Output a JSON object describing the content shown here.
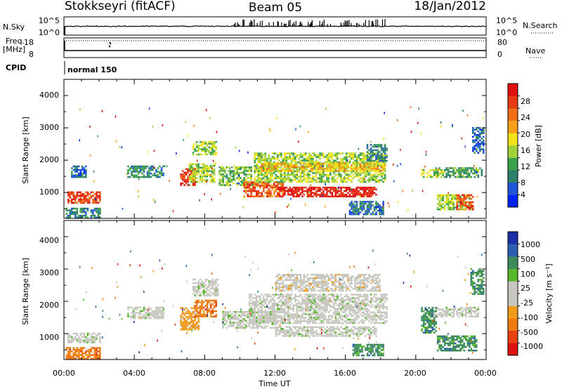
{
  "header": {
    "title": "Stokkseyri (fitACF)",
    "beam": "Beam 05",
    "date": "18/Jan/2012"
  },
  "top_panels": {
    "nsky_label": "N.Sky",
    "nsky_ticks": [
      "10^5",
      "10^0"
    ],
    "nsearch_label": "N.Search",
    "nsearch_ticks": [
      "10^5",
      "10^0"
    ],
    "freq_label": "Freq.",
    "freq_unit": "[MHz]",
    "freq_ticks": [
      "18",
      "8"
    ],
    "nave_label": "Nave",
    "nave_ticks": [
      "80",
      "0"
    ],
    "cpid_label": "CPID",
    "cpid_value": "normal 150"
  },
  "colors": {
    "power": [
      "#0022ee",
      "#1f55d8",
      "#2d7f6a",
      "#3aa04a",
      "#9fd23a",
      "#f2e21a",
      "#f5a01a",
      "#f07018",
      "#e83a14",
      "#e01010"
    ],
    "velocity": [
      "#1a2ea8",
      "#2b5fb0",
      "#3a8a5a",
      "#56b82a",
      "#c8c8c0",
      "#c8c8c0",
      "#f29a1a",
      "#f07a10",
      "#e84010",
      "#dd1010"
    ]
  },
  "chart_data": [
    {
      "type": "heatmap",
      "name": "power",
      "x_axis": "time_ut",
      "xlim": [
        0,
        24
      ],
      "ylim": [
        200,
        4500
      ],
      "ylabel": "Slant Range [km]",
      "yticks": [
        "1000",
        "2000",
        "3000",
        "4000"
      ],
      "colorbar": {
        "label": "Power [dB]",
        "ticks": [
          "4",
          "8",
          "12",
          "16",
          "20",
          "24",
          "28"
        ],
        "range": [
          0,
          30
        ]
      },
      "regions": [
        {
          "t": [
            0.2,
            2.1
          ],
          "r": [
            650,
            1000
          ],
          "v": 25
        },
        {
          "t": [
            0.1,
            2.1
          ],
          "r": [
            200,
            500
          ],
          "v": 8
        },
        {
          "t": [
            0.4,
            1.3
          ],
          "r": [
            1450,
            1800
          ],
          "v": 6
        },
        {
          "t": [
            3.6,
            5.6
          ],
          "r": [
            1450,
            1800
          ],
          "v": 8
        },
        {
          "t": [
            6.6,
            7.4
          ],
          "r": [
            1200,
            1700
          ],
          "v": 26
        },
        {
          "t": [
            7.1,
            8.5
          ],
          "r": [
            1300,
            1900
          ],
          "v": 14
        },
        {
          "t": [
            7.3,
            8.6
          ],
          "r": [
            2150,
            2550
          ],
          "v": 14
        },
        {
          "t": [
            8.8,
            10.6
          ],
          "r": [
            1200,
            1800
          ],
          "v": 12
        },
        {
          "t": [
            10.2,
            12.4
          ],
          "r": [
            850,
            1300
          ],
          "v": 24
        },
        {
          "t": [
            12.2,
            17.8
          ],
          "r": [
            850,
            1150
          ],
          "v": 28
        },
        {
          "t": [
            10.8,
            18.3
          ],
          "r": [
            1300,
            2200
          ],
          "v": 14
        },
        {
          "t": [
            11.2,
            18.3
          ],
          "r": [
            1650,
            1900
          ],
          "v": 18
        },
        {
          "t": [
            17.2,
            18.4
          ],
          "r": [
            1950,
            2500
          ],
          "v": 8
        },
        {
          "t": [
            16.2,
            18.2
          ],
          "r": [
            300,
            700
          ],
          "v": 6
        },
        {
          "t": [
            20.3,
            21.6
          ],
          "r": [
            1450,
            1750
          ],
          "v": 14
        },
        {
          "t": [
            21.6,
            23.8
          ],
          "r": [
            1450,
            1750
          ],
          "v": 10
        },
        {
          "t": [
            21.2,
            23.2
          ],
          "r": [
            450,
            900
          ],
          "v": 14
        },
        {
          "t": [
            22.3,
            23.3
          ],
          "r": [
            450,
            900
          ],
          "v": 24
        },
        {
          "t": [
            23.2,
            23.9
          ],
          "r": [
            2200,
            3000
          ],
          "v": 6
        }
      ]
    },
    {
      "type": "heatmap",
      "name": "velocity",
      "x_axis": "time_ut",
      "xlim": [
        0,
        24
      ],
      "ylim": [
        200,
        4500
      ],
      "ylabel": "Slant Range [km]",
      "yticks": [
        "1000",
        "2000",
        "3000",
        "4000"
      ],
      "xticks": [
        "00:00",
        "04:00",
        "08:00",
        "12:00",
        "16:00",
        "20:00",
        "00:00"
      ],
      "xlabel": "Time UT",
      "colorbar": {
        "label": "Velocity [m s⁻¹]",
        "ticks": [
          "1000",
          "500",
          "100",
          "25",
          "-25",
          "-100",
          "-500",
          "-1000"
        ]
      },
      "regions": [
        {
          "t": [
            0.1,
            2.1
          ],
          "r": [
            200,
            550
          ],
          "v": 2
        },
        {
          "t": [
            0.2,
            2.1
          ],
          "r": [
            700,
            1000
          ],
          "v": 5
        },
        {
          "t": [
            3.6,
            5.6
          ],
          "r": [
            1450,
            1800
          ],
          "v": 5
        },
        {
          "t": [
            6.6,
            7.6
          ],
          "r": [
            1100,
            1800
          ],
          "v": 3
        },
        {
          "t": [
            7.4,
            8.6
          ],
          "r": [
            1500,
            2000
          ],
          "v": 2
        },
        {
          "t": [
            7.3,
            8.7
          ],
          "r": [
            2150,
            2650
          ],
          "v": 5
        },
        {
          "t": [
            9.0,
            12.0
          ],
          "r": [
            1150,
            1700
          ],
          "v": 5
        },
        {
          "t": [
            10.5,
            18.4
          ],
          "r": [
            1300,
            2200
          ],
          "v": 5
        },
        {
          "t": [
            12.0,
            18.0
          ],
          "r": [
            2300,
            2800
          ],
          "v": 4
        },
        {
          "t": [
            12.0,
            17.8
          ],
          "r": [
            900,
            1200
          ],
          "v": 5
        },
        {
          "t": [
            16.4,
            18.2
          ],
          "r": [
            300,
            650
          ],
          "v": 7
        },
        {
          "t": [
            20.3,
            21.2
          ],
          "r": [
            1000,
            1800
          ],
          "v": 7
        },
        {
          "t": [
            21.0,
            23.6
          ],
          "r": [
            1500,
            1800
          ],
          "v": 5
        },
        {
          "t": [
            21.2,
            23.5
          ],
          "r": [
            450,
            900
          ],
          "v": 7
        },
        {
          "t": [
            23.1,
            23.9
          ],
          "r": [
            2200,
            3000
          ],
          "v": 7
        }
      ]
    }
  ]
}
